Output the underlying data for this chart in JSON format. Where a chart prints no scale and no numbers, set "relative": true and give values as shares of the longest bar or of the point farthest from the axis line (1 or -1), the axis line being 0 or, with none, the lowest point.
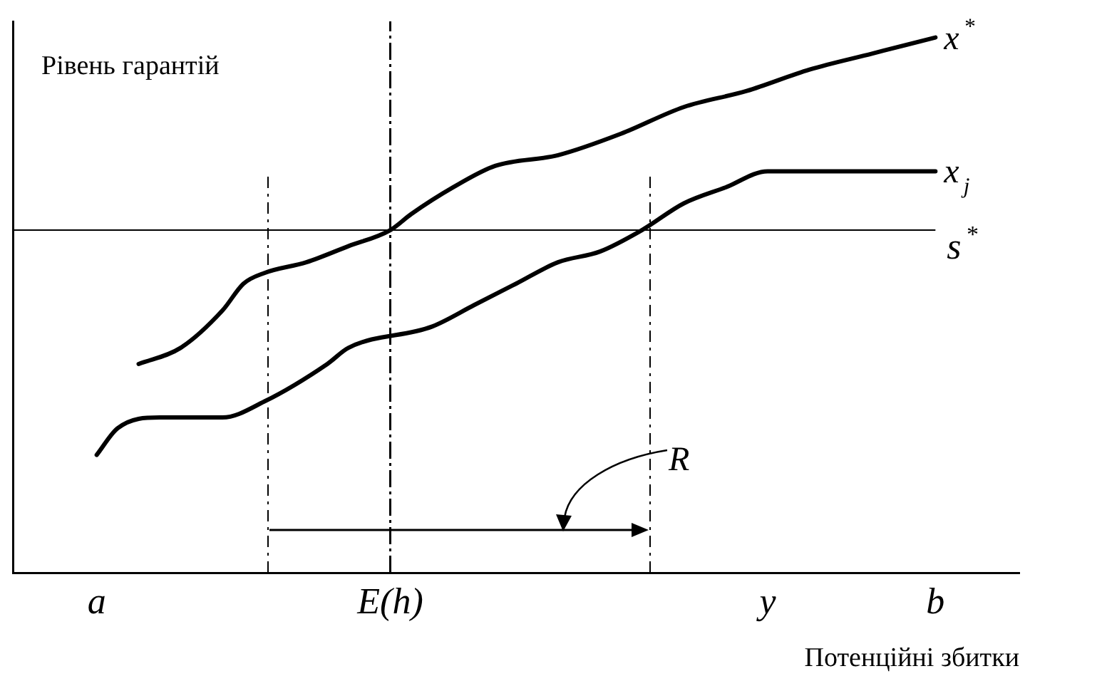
{
  "chart_data": {
    "type": "line",
    "relative": true,
    "xlabel": "Потенційні збитки",
    "ylabel": "Рівень гарантій",
    "categories": [
      null,
      null,
      null,
      null,
      "a",
      null,
      null,
      null,
      null,
      null,
      null,
      null,
      null,
      null,
      null,
      null,
      null,
      null,
      "E(h)",
      null,
      null,
      null,
      null,
      null,
      null,
      null,
      null,
      null,
      null,
      null,
      null,
      null,
      null,
      null,
      null,
      null,
      "y",
      null,
      null,
      null,
      null,
      null,
      null,
      null,
      "b",
      null,
      null,
      null,
      null
    ],
    "grid": false,
    "legend": false,
    "marker": "none",
    "line_style": "solid",
    "series": [
      {
        "name": "x$^{*}$",
        "color": "#000000",
        "values": [
          null,
          null,
          null,
          null,
          null,
          null,
          0.39,
          null,
          0.42,
          null,
          0.49,
          0.54,
          0.56,
          null,
          0.58,
          null,
          0.61,
          null,
          0.64,
          0.67,
          null,
          0.72,
          null,
          0.76,
          null,
          null,
          0.78,
          null,
          null,
          0.82,
          null,
          null,
          0.87,
          null,
          null,
          0.9,
          null,
          null,
          0.94,
          null,
          null,
          0.97,
          null,
          null,
          1.0,
          null,
          null,
          null,
          null
        ]
      },
      {
        "name": "x$_{j}$",
        "color": "#000000",
        "values": [
          null,
          null,
          null,
          null,
          0.22,
          0.27,
          null,
          0.29,
          null,
          null,
          0.29,
          null,
          0.32,
          null,
          null,
          0.39,
          0.42,
          null,
          null,
          null,
          0.46,
          null,
          0.5,
          null,
          0.54,
          null,
          0.58,
          null,
          0.6,
          null,
          0.64,
          null,
          0.69,
          null,
          0.72,
          null,
          0.75,
          null,
          null,
          null,
          null,
          null,
          null,
          null,
          0.75,
          null,
          null,
          null,
          null
        ]
      }
    ],
    "ref_lines": [
      {
        "axis": "y",
        "value": 0.64,
        "label": "s$^{*}$",
        "color": "#000000",
        "line_style": "solid"
      },
      {
        "axis": "x",
        "value": "E(h)",
        "color": "#000000",
        "line_style": "dashed"
      }
    ],
    "annotations": [
      "R"
    ]
  }
}
